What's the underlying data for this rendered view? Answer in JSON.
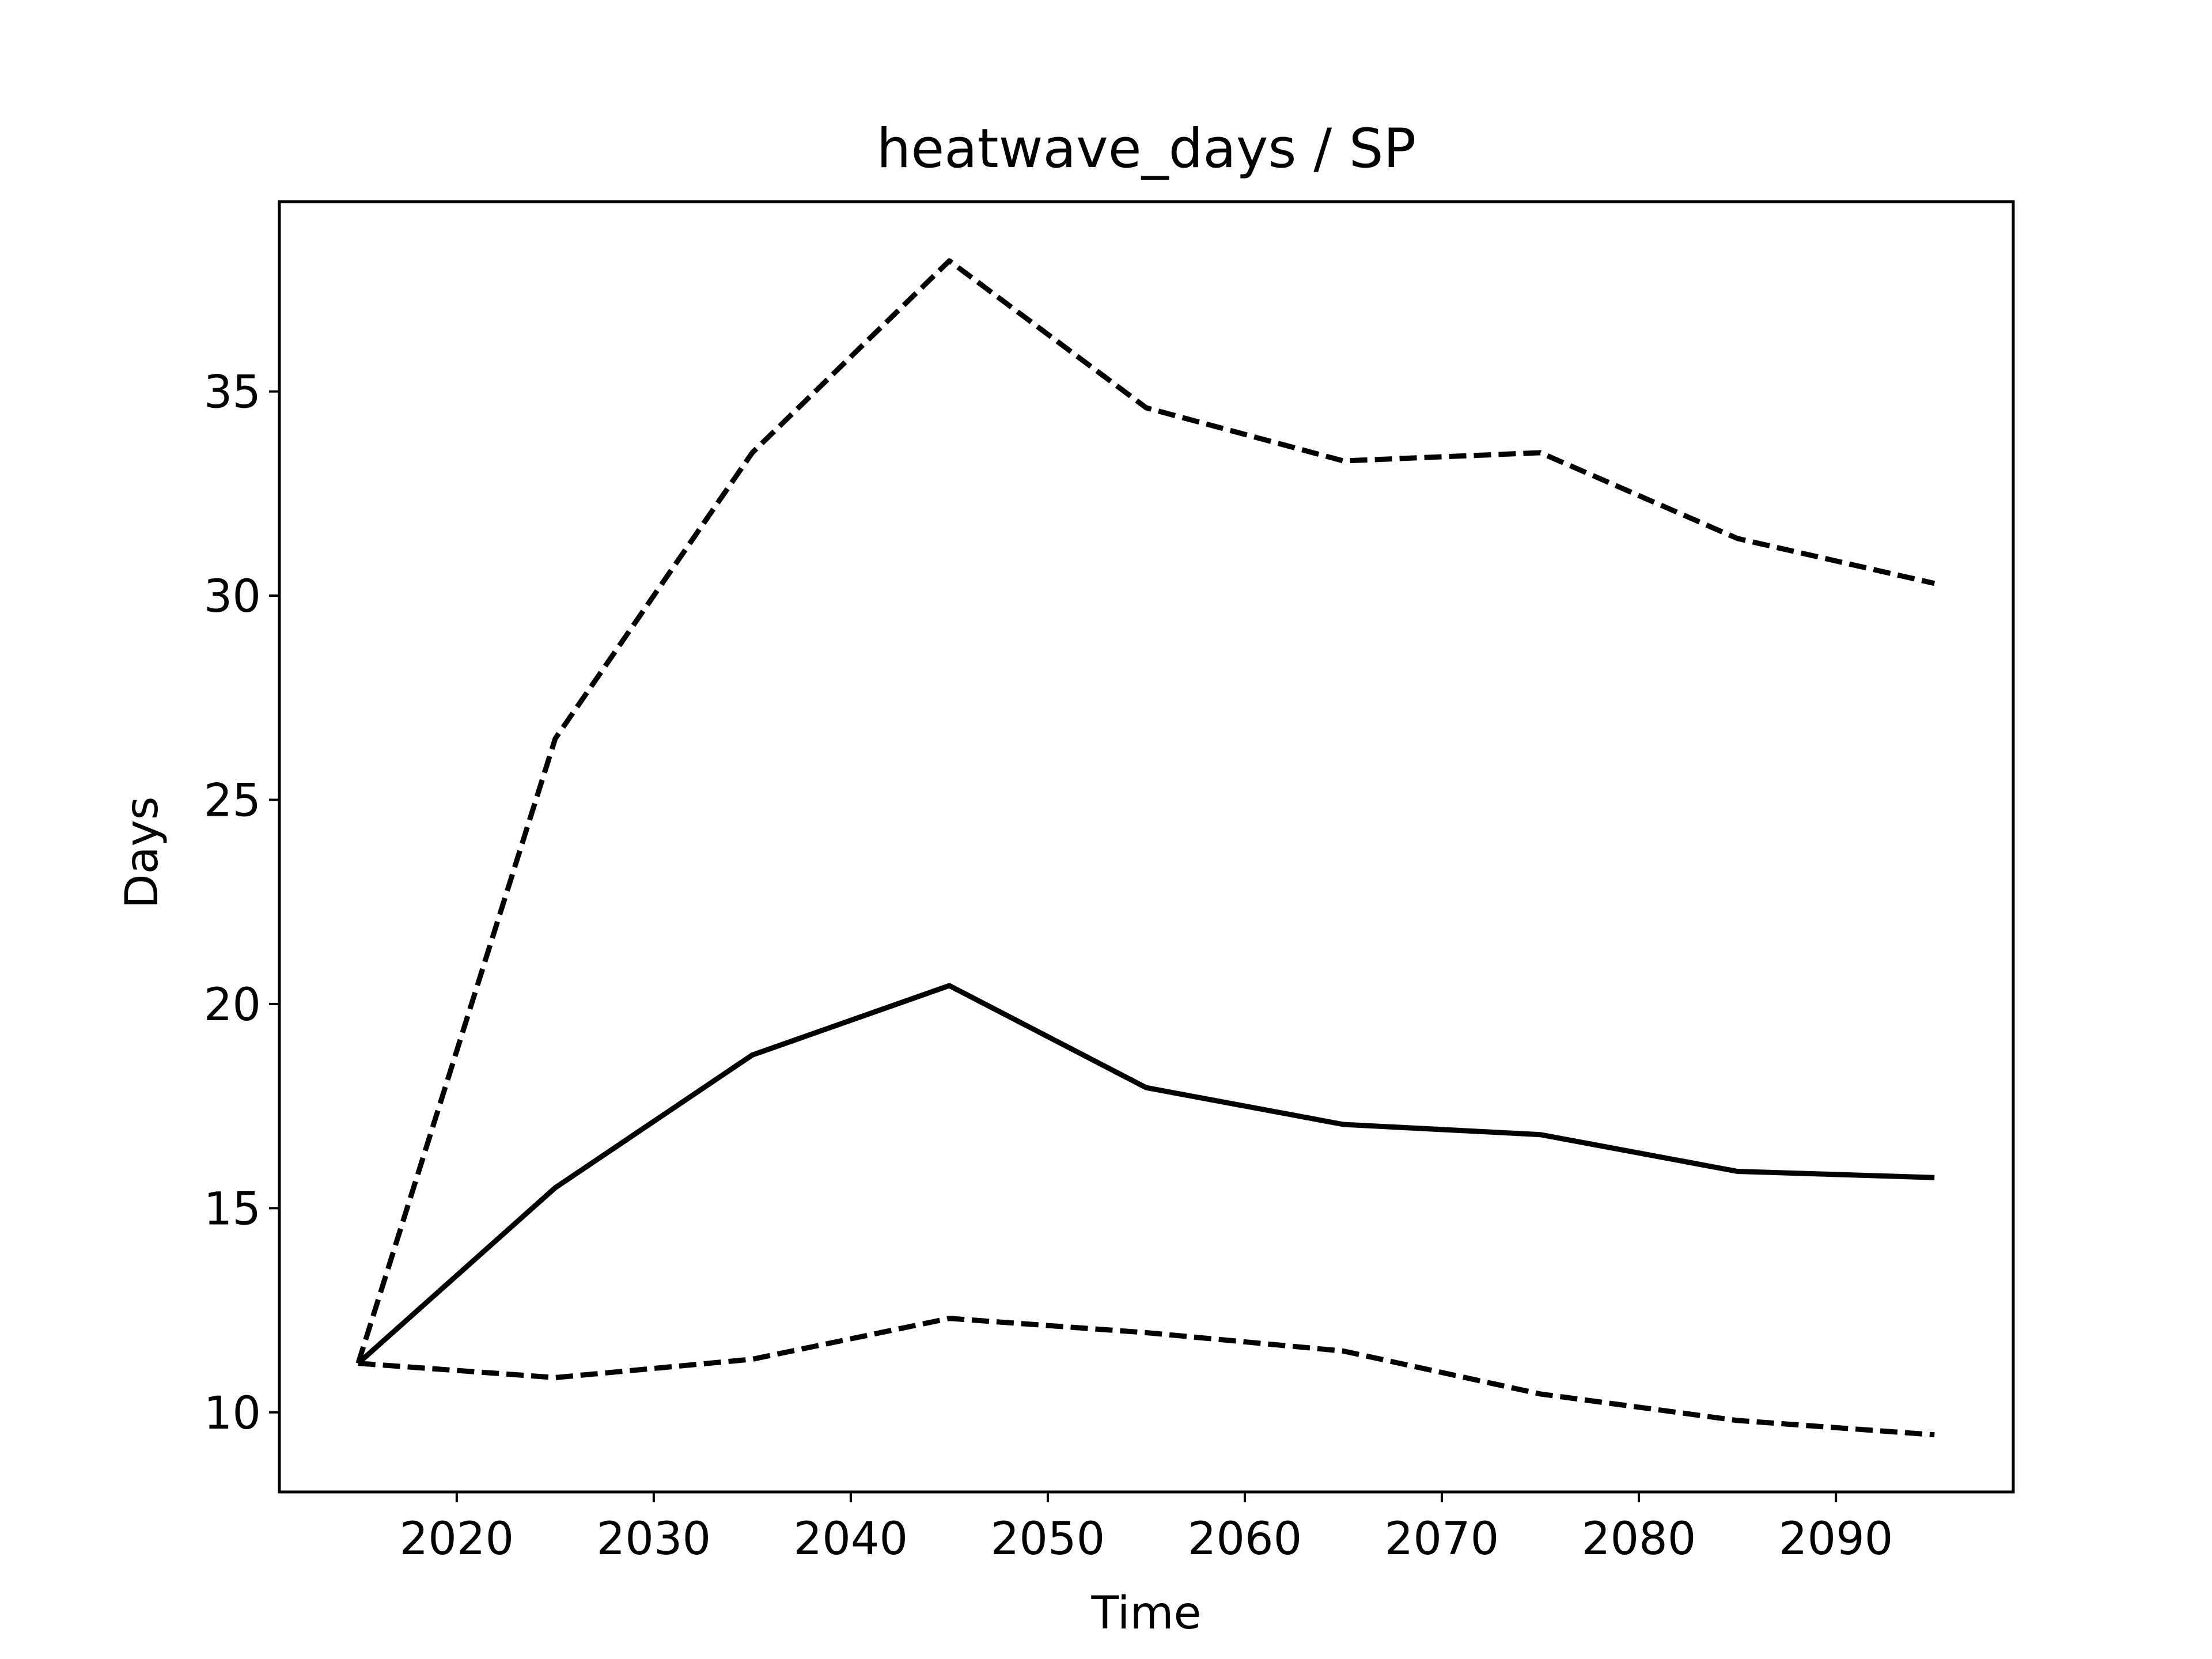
{
  "chart_data": {
    "type": "line",
    "title": "heatwave_days / SP",
    "xlabel": "Time",
    "ylabel": "Days",
    "xlim": [
      2011,
      2099
    ],
    "ylim": [
      8.05,
      39.65
    ],
    "xticks": [
      2020,
      2030,
      2040,
      2050,
      2060,
      2070,
      2080,
      2090
    ],
    "yticks": [
      10,
      15,
      20,
      25,
      30,
      35
    ],
    "grid": false,
    "legend": "none",
    "line_color": "#000000",
    "x": [
      2015,
      2025,
      2035,
      2045,
      2055,
      2065,
      2075,
      2085,
      2095
    ],
    "series": [
      {
        "style": "dashed",
        "values": [
          11.2,
          26.5,
          33.5,
          38.2,
          34.6,
          33.3,
          33.5,
          31.4,
          30.3
        ]
      },
      {
        "style": "solid",
        "values": [
          11.2,
          15.5,
          18.75,
          20.45,
          17.95,
          17.05,
          16.8,
          15.9,
          15.75
        ]
      },
      {
        "style": "dashed",
        "values": [
          11.2,
          10.85,
          11.3,
          12.3,
          11.95,
          11.5,
          10.45,
          9.8,
          9.45
        ]
      }
    ]
  }
}
